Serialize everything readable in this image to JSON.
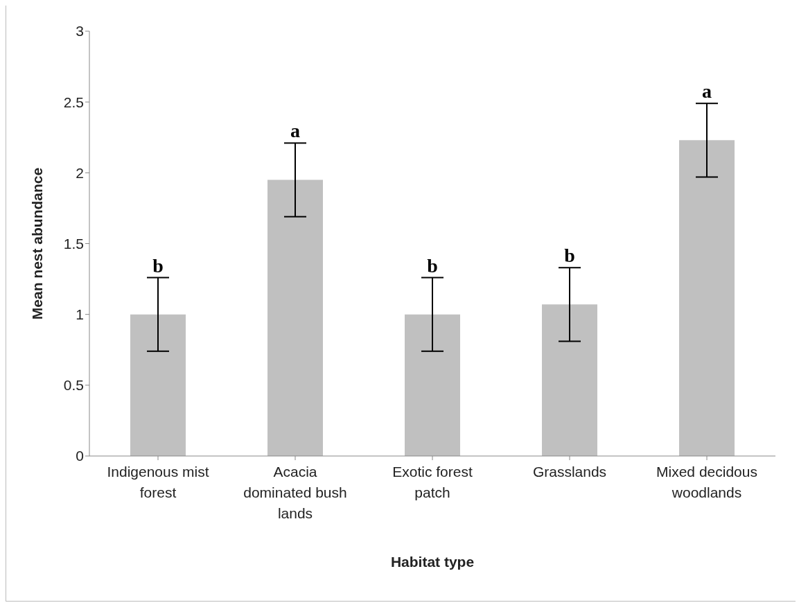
{
  "chart_data": {
    "type": "bar",
    "xlabel": "Habitat type",
    "ylabel": "Mean nest abundance",
    "categories": [
      "Indigenous mist forest",
      "Acacia dominated bush lands",
      "Exotic forest patch",
      "Grasslands",
      "Mixed decidous woodlands"
    ],
    "values": [
      1.0,
      1.95,
      1.0,
      1.07,
      2.23
    ],
    "errors": [
      0.26,
      0.26,
      0.26,
      0.26,
      0.26
    ],
    "color": "#c0c0c0",
    "ylim": [
      0,
      3
    ],
    "yticks": [
      0,
      0.5,
      1,
      1.5,
      2,
      2.5,
      3
    ],
    "grid": false,
    "legend": false,
    "annotations": [
      {
        "text": "b",
        "x": "Indigenous mist forest",
        "y": 1.26
      },
      {
        "text": "a",
        "x": "Acacia dominated bush lands",
        "y": 2.21
      },
      {
        "text": "b",
        "x": "Exotic forest patch",
        "y": 1.26
      },
      {
        "text": "b",
        "x": "Grasslands",
        "y": 1.33
      },
      {
        "text": "a",
        "x": "Mixed decidous woodlands",
        "y": 2.49
      }
    ]
  }
}
